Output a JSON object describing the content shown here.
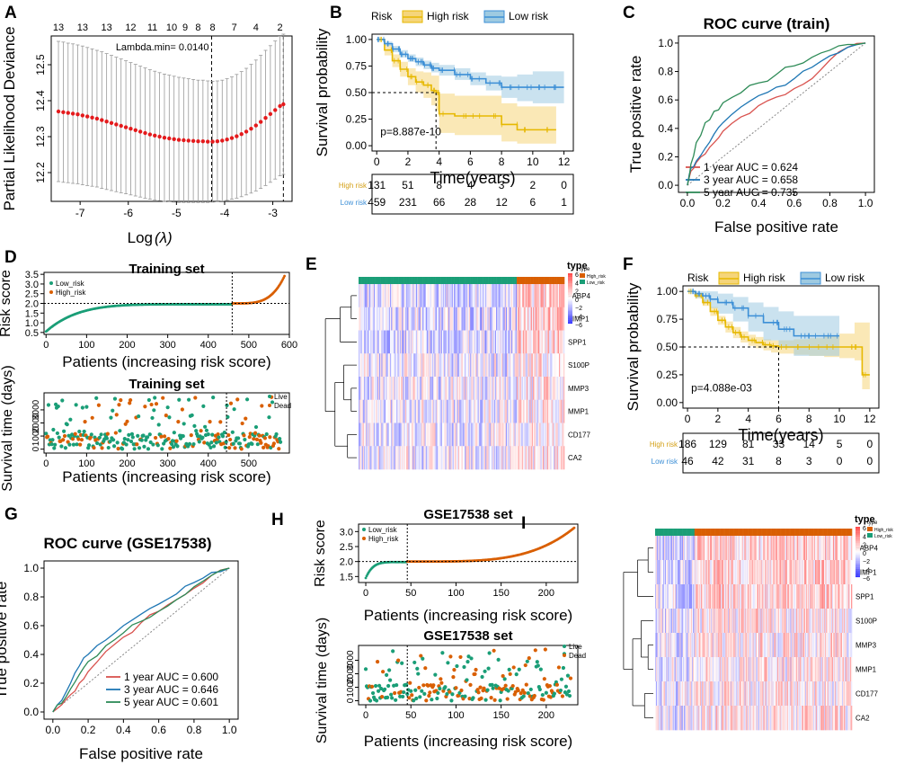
{
  "panel_labels": {
    "A": "A",
    "B": "B",
    "C": "C",
    "D": "D",
    "E": "E",
    "F": "F",
    "G": "G",
    "H": "H",
    "I": "I"
  },
  "chart_data": {
    "A": {
      "type": "scatter",
      "title": "",
      "xlabel": "Log",
      "xlabel_symbol": "(λ)",
      "ylabel": "Partial Likelihood Deviance",
      "xlim": [
        -7.6,
        -2.6
      ],
      "ylim": [
        12.12,
        12.58
      ],
      "xticks": [
        "-7",
        "-6",
        "-5",
        "-4",
        "-3"
      ],
      "xtick_vals": [
        -7,
        -6,
        -5,
        -4,
        -3
      ],
      "yticks": [
        "12.2",
        "12.3",
        "12.4",
        "12.5"
      ],
      "ytick_vals": [
        12.2,
        12.3,
        12.4,
        12.5
      ],
      "top_ticks": [
        "13",
        "13",
        "13",
        "12",
        "11",
        "10",
        "9",
        "8",
        "8",
        "7",
        "4",
        "2"
      ],
      "top_tick_vals": [
        -7.45,
        -6.95,
        -6.45,
        -5.95,
        -5.5,
        -5.1,
        -4.82,
        -4.55,
        -4.25,
        -3.8,
        -3.35,
        -2.85
      ],
      "annotation": "Lambda.min= 0.0140",
      "vlines": [
        -4.27,
        -2.78
      ],
      "x": [
        -7.45,
        -7.35,
        -7.25,
        -7.15,
        -7.05,
        -6.95,
        -6.85,
        -6.75,
        -6.65,
        -6.55,
        -6.45,
        -6.35,
        -6.25,
        -6.15,
        -6.05,
        -5.95,
        -5.85,
        -5.75,
        -5.65,
        -5.55,
        -5.45,
        -5.35,
        -5.25,
        -5.15,
        -5.05,
        -4.95,
        -4.85,
        -4.75,
        -4.65,
        -4.55,
        -4.45,
        -4.35,
        -4.25,
        -4.15,
        -4.05,
        -3.95,
        -3.85,
        -3.75,
        -3.65,
        -3.55,
        -3.45,
        -3.35,
        -3.25,
        -3.15,
        -3.05,
        -2.95,
        -2.85,
        -2.78
      ],
      "y": [
        12.37,
        12.368,
        12.366,
        12.364,
        12.362,
        12.359,
        12.356,
        12.353,
        12.35,
        12.346,
        12.342,
        12.338,
        12.334,
        12.33,
        12.326,
        12.322,
        12.318,
        12.314,
        12.31,
        12.306,
        12.303,
        12.3,
        12.297,
        12.295,
        12.293,
        12.291,
        12.29,
        12.289,
        12.288,
        12.287,
        12.287,
        12.286,
        12.286,
        12.287,
        12.289,
        12.292,
        12.296,
        12.301,
        12.307,
        12.314,
        12.322,
        12.331,
        12.341,
        12.352,
        12.363,
        12.374,
        12.385,
        12.39
      ],
      "err": [
        0.195,
        0.195,
        0.194,
        0.194,
        0.193,
        0.193,
        0.192,
        0.191,
        0.19,
        0.19,
        0.189,
        0.188,
        0.187,
        0.186,
        0.185,
        0.184,
        0.183,
        0.182,
        0.181,
        0.18,
        0.179,
        0.178,
        0.177,
        0.176,
        0.175,
        0.174,
        0.173,
        0.172,
        0.171,
        0.17,
        0.17,
        0.169,
        0.168,
        0.168,
        0.168,
        0.169,
        0.17,
        0.172,
        0.174,
        0.176,
        0.179,
        0.182,
        0.185,
        0.188,
        0.19,
        0.192,
        0.194,
        0.195
      ]
    },
    "B": {
      "type": "line",
      "legend_title": "Risk",
      "series_names": [
        "High risk",
        "Low risk"
      ],
      "xlabel": "Time(years)",
      "ylabel": "Survival probability",
      "xlim": [
        -0.3,
        12.6
      ],
      "ylim": [
        -0.05,
        1.05
      ],
      "xticks": [
        "0",
        "2",
        "4",
        "6",
        "8",
        "10",
        "12"
      ],
      "xtick_vals": [
        0,
        2,
        4,
        6,
        8,
        10,
        12
      ],
      "yticks": [
        "0.00",
        "0.25",
        "0.50",
        "0.75",
        "1.00"
      ],
      "ytick_vals": [
        0,
        0.25,
        0.5,
        0.75,
        1
      ],
      "pvalue": "p=8.887e-10",
      "median_time": 3.8,
      "high_x": [
        0,
        0.5,
        1,
        1.5,
        2,
        2.5,
        3,
        3.5,
        3.8,
        4,
        5,
        6,
        7,
        8,
        9,
        10,
        11.5
      ],
      "high_y": [
        1,
        0.9,
        0.8,
        0.72,
        0.65,
        0.6,
        0.57,
        0.52,
        0.5,
        0.3,
        0.28,
        0.28,
        0.28,
        0.2,
        0.15,
        0.15,
        0.15
      ],
      "high_lo": [
        1,
        0.85,
        0.74,
        0.65,
        0.57,
        0.5,
        0.45,
        0.38,
        0.33,
        0.12,
        0.1,
        0.1,
        0.1,
        0.04,
        0.02,
        0.02,
        0.02
      ],
      "high_hi": [
        1,
        0.95,
        0.86,
        0.79,
        0.73,
        0.7,
        0.69,
        0.66,
        0.66,
        0.49,
        0.47,
        0.47,
        0.47,
        0.4,
        0.37,
        0.37,
        0.37
      ],
      "low_x": [
        0,
        0.5,
        1,
        1.5,
        2,
        2.5,
        3,
        3.5,
        4,
        5,
        6,
        7,
        8,
        9,
        10,
        11,
        12
      ],
      "low_y": [
        1,
        0.96,
        0.91,
        0.86,
        0.82,
        0.79,
        0.76,
        0.73,
        0.71,
        0.67,
        0.63,
        0.59,
        0.55,
        0.55,
        0.55,
        0.55,
        0.55
      ],
      "low_lo": [
        1,
        0.94,
        0.88,
        0.83,
        0.79,
        0.75,
        0.72,
        0.69,
        0.66,
        0.62,
        0.57,
        0.52,
        0.45,
        0.42,
        0.4,
        0.4,
        0.4
      ],
      "low_hi": [
        1,
        0.98,
        0.94,
        0.9,
        0.86,
        0.83,
        0.8,
        0.78,
        0.76,
        0.73,
        0.69,
        0.66,
        0.65,
        0.67,
        0.7,
        0.7,
        0.7
      ],
      "table": {
        "labels": [
          "High risk",
          "Low risk"
        ],
        "rows": [
          [
            "131",
            "51",
            "8",
            "4",
            "3",
            "2",
            "0"
          ],
          [
            "459",
            "231",
            "66",
            "28",
            "12",
            "6",
            "1"
          ]
        ]
      }
    },
    "C": {
      "type": "line",
      "title": "ROC curve (train)",
      "xlabel": "False positive rate",
      "ylabel": "True positive rate",
      "xlim": [
        -0.05,
        1.05
      ],
      "ylim": [
        -0.05,
        1.05
      ],
      "xticks": [
        "0.0",
        "0.2",
        "0.4",
        "0.6",
        "0.8",
        "1.0"
      ],
      "ticks": [
        0,
        0.2,
        0.4,
        0.6,
        0.8,
        1
      ],
      "yticks": [
        "0.0",
        "0.2",
        "0.4",
        "0.6",
        "0.8",
        "1.0"
      ],
      "series": [
        {
          "name": "1 year AUC =  0.624",
          "color": "#d9534f",
          "x": [
            0,
            0.02,
            0.05,
            0.1,
            0.15,
            0.2,
            0.3,
            0.4,
            0.5,
            0.6,
            0.7,
            0.8,
            0.9,
            1
          ],
          "y": [
            0,
            0.1,
            0.16,
            0.22,
            0.3,
            0.38,
            0.48,
            0.56,
            0.62,
            0.68,
            0.75,
            0.88,
            0.97,
            1
          ]
        },
        {
          "name": "3 year AUC =  0.658",
          "color": "#1f77b4",
          "x": [
            0,
            0.02,
            0.05,
            0.1,
            0.15,
            0.2,
            0.3,
            0.4,
            0.5,
            0.6,
            0.7,
            0.8,
            0.9,
            1
          ],
          "y": [
            0,
            0.12,
            0.17,
            0.26,
            0.36,
            0.44,
            0.55,
            0.63,
            0.69,
            0.75,
            0.83,
            0.91,
            0.97,
            1
          ]
        },
        {
          "name": "5 year AUC =  0.735",
          "color": "#2e8b57",
          "x": [
            0,
            0.02,
            0.05,
            0.1,
            0.15,
            0.2,
            0.3,
            0.4,
            0.5,
            0.6,
            0.7,
            0.8,
            0.9,
            1
          ],
          "y": [
            0,
            0.15,
            0.3,
            0.44,
            0.52,
            0.58,
            0.65,
            0.72,
            0.78,
            0.84,
            0.9,
            0.95,
            0.99,
            1
          ]
        }
      ]
    },
    "D_top": {
      "type": "scatter",
      "title": "Training set",
      "xlabel": "Patients (increasing risk score)",
      "ylabel": "Risk score",
      "xlim": [
        -5,
        600
      ],
      "ylim": [
        0.4,
        3.6
      ],
      "xticks": [
        "0",
        "100",
        "200",
        "300",
        "400",
        "500",
        "600"
      ],
      "xtick_vals": [
        0,
        100,
        200,
        300,
        400,
        500,
        600
      ],
      "yticks": [
        "0.5",
        "1.0",
        "1.5",
        "2.0",
        "2.5",
        "3.0",
        "3.5"
      ],
      "ytick_vals": [
        0.5,
        1,
        1.5,
        2,
        2.5,
        3,
        3.5
      ],
      "legend": [
        "Low_risk",
        "High_risk"
      ],
      "cutoff_x": 459,
      "cutoff_y": 2.0,
      "n": 590
    },
    "D_bottom": {
      "type": "scatter",
      "title": "Training set",
      "xlabel": "Patients (increasing risk score)",
      "ylabel": "Survival time (days)",
      "xlim": [
        -5,
        600
      ],
      "ylim": [
        -300,
        4300
      ],
      "xticks": [
        "0",
        "100",
        "200",
        "300",
        "400",
        "500"
      ],
      "xtick_vals": [
        0,
        100,
        200,
        300,
        400,
        500
      ],
      "yticks": [
        "0",
        "1000",
        "2000",
        "3000"
      ],
      "ytick_vals": [
        0,
        1000,
        2000,
        3000
      ],
      "legend": [
        "Live",
        "Dead"
      ],
      "cutoff_x": 445,
      "n": 580
    },
    "E": {
      "type": "heatmap",
      "genes": [
        "FABP4",
        "TIMP1",
        "SPP1",
        "S100P",
        "MMP3",
        "MMP1",
        "CD177",
        "CA2"
      ],
      "legend_ticks": [
        "6",
        "4",
        "2",
        "0",
        "−2",
        "−4",
        "−6"
      ],
      "type_label": "type",
      "type_levels": [
        "High_risk",
        "Low_risk"
      ],
      "low_fraction": 0.77,
      "cols": 190
    },
    "F": {
      "type": "line",
      "legend_title": "Risk",
      "series_names": [
        "High risk",
        "Low risk"
      ],
      "xlabel": "Time(years)",
      "ylabel": "Survival probability",
      "xlim": [
        -0.3,
        12.6
      ],
      "ylim": [
        -0.05,
        1.05
      ],
      "xticks": [
        "0",
        "2",
        "4",
        "6",
        "8",
        "10",
        "12"
      ],
      "xtick_vals": [
        0,
        2,
        4,
        6,
        8,
        10,
        12
      ],
      "yticks": [
        "0.00",
        "0.25",
        "0.50",
        "0.75",
        "1.00"
      ],
      "ytick_vals": [
        0,
        0.25,
        0.5,
        0.75,
        1
      ],
      "pvalue": "p=4.088e-03",
      "median_time": 6.0,
      "high_x": [
        0,
        0.5,
        1,
        1.5,
        2,
        2.5,
        3,
        3.5,
        4,
        4.5,
        5,
        5.5,
        6,
        7,
        8,
        9,
        10,
        11,
        11.5,
        12
      ],
      "high_y": [
        1,
        0.96,
        0.9,
        0.82,
        0.74,
        0.68,
        0.63,
        0.59,
        0.56,
        0.54,
        0.52,
        0.51,
        0.5,
        0.5,
        0.5,
        0.5,
        0.5,
        0.5,
        0.25,
        0.25
      ],
      "high_lo": [
        1,
        0.94,
        0.87,
        0.78,
        0.7,
        0.63,
        0.58,
        0.54,
        0.51,
        0.49,
        0.47,
        0.45,
        0.44,
        0.43,
        0.42,
        0.41,
        0.4,
        0.38,
        0.12,
        0.12
      ],
      "high_hi": [
        1,
        0.98,
        0.93,
        0.86,
        0.78,
        0.73,
        0.68,
        0.64,
        0.61,
        0.59,
        0.57,
        0.56,
        0.56,
        0.57,
        0.58,
        0.6,
        0.62,
        0.72,
        0.72,
        0.72
      ],
      "low_x": [
        0,
        0.5,
        1,
        1.5,
        2,
        3,
        4,
        5,
        6,
        7,
        8,
        9,
        10
      ],
      "low_y": [
        1,
        0.98,
        0.96,
        0.93,
        0.9,
        0.85,
        0.78,
        0.72,
        0.66,
        0.6,
        0.6,
        0.6,
        0.6
      ],
      "low_lo": [
        1,
        0.94,
        0.9,
        0.85,
        0.8,
        0.73,
        0.64,
        0.56,
        0.49,
        0.42,
        0.42,
        0.42,
        0.42
      ],
      "low_hi": [
        1,
        1,
        1,
        1,
        0.98,
        0.95,
        0.9,
        0.86,
        0.82,
        0.78,
        0.78,
        0.78,
        0.78
      ],
      "table": {
        "labels": [
          "High risk",
          "Low risk"
        ],
        "rows": [
          [
            "186",
            "129",
            "81",
            "33",
            "14",
            "5",
            "0"
          ],
          [
            "46",
            "42",
            "31",
            "8",
            "3",
            "0",
            "0"
          ]
        ]
      }
    },
    "G": {
      "type": "line",
      "title": "ROC curve (GSE17538)",
      "xlabel": "False positive rate",
      "ylabel": "True positive rate",
      "xlim": [
        -0.05,
        1.05
      ],
      "ylim": [
        -0.05,
        1.05
      ],
      "xticks": [
        "0.0",
        "0.2",
        "0.4",
        "0.6",
        "0.8",
        "1.0"
      ],
      "ticks": [
        0,
        0.2,
        0.4,
        0.6,
        0.8,
        1
      ],
      "yticks": [
        "0.0",
        "0.2",
        "0.4",
        "0.6",
        "0.8",
        "1.0"
      ],
      "series": [
        {
          "name": "1 year AUC =  0.600",
          "color": "#d9534f",
          "x": [
            0,
            0.05,
            0.1,
            0.15,
            0.2,
            0.3,
            0.4,
            0.5,
            0.6,
            0.7,
            0.8,
            0.9,
            1
          ],
          "y": [
            0,
            0.05,
            0.12,
            0.2,
            0.28,
            0.42,
            0.52,
            0.62,
            0.7,
            0.78,
            0.86,
            0.95,
            1
          ]
        },
        {
          "name": "3 year AUC =  0.646",
          "color": "#1f77b4",
          "x": [
            0,
            0.05,
            0.1,
            0.15,
            0.2,
            0.3,
            0.4,
            0.5,
            0.6,
            0.7,
            0.8,
            0.9,
            1
          ],
          "y": [
            0,
            0.08,
            0.2,
            0.32,
            0.4,
            0.5,
            0.6,
            0.68,
            0.75,
            0.82,
            0.9,
            0.97,
            1
          ]
        },
        {
          "name": "5 year AUC =  0.601",
          "color": "#2e8b57",
          "x": [
            0,
            0.05,
            0.1,
            0.15,
            0.2,
            0.3,
            0.4,
            0.5,
            0.6,
            0.7,
            0.8,
            0.9,
            1
          ],
          "y": [
            0,
            0.06,
            0.16,
            0.26,
            0.35,
            0.46,
            0.55,
            0.63,
            0.7,
            0.78,
            0.87,
            0.95,
            1
          ]
        }
      ]
    },
    "H_top": {
      "type": "scatter",
      "title": "GSE17538 set",
      "xlabel": "Patients (increasing risk score)",
      "ylabel": "Risk score",
      "xlim": [
        -8,
        235
      ],
      "ylim": [
        1.3,
        3.25
      ],
      "xticks": [
        "0",
        "50",
        "100",
        "150",
        "200"
      ],
      "xtick_vals": [
        0,
        50,
        100,
        150,
        200
      ],
      "yticks": [
        "1.5",
        "2.0",
        "2.5",
        "3.0"
      ],
      "ytick_vals": [
        1.5,
        2,
        2.5,
        3
      ],
      "legend": [
        "Low_risk",
        "High_risk"
      ],
      "cutoff_x": 46,
      "cutoff_y": 2.0,
      "n": 232
    },
    "H_bottom": {
      "type": "scatter",
      "title": "GSE17538 set",
      "xlabel": "Patients (increasing risk score)",
      "ylabel": "Survival time (days)",
      "xlim": [
        -8,
        235
      ],
      "ylim": [
        -300,
        4100
      ],
      "xticks": [
        "0",
        "50",
        "100",
        "150",
        "200"
      ],
      "xtick_vals": [
        0,
        50,
        100,
        150,
        200
      ],
      "yticks": [
        "0",
        "1000",
        "2000",
        "3000"
      ],
      "ytick_vals": [
        0,
        1000,
        2000,
        3000
      ],
      "legend": [
        "Live",
        "Dead"
      ],
      "cutoff_x": 46,
      "n": 228
    },
    "I": {
      "type": "heatmap",
      "genes": [
        "FABP4",
        "TIMP1",
        "SPP1",
        "S100P",
        "MMP3",
        "MMP1",
        "CD177",
        "CA2"
      ],
      "legend_ticks": [
        "6",
        "4",
        "2",
        "0",
        "−2",
        "−4",
        "−6"
      ],
      "type_label": "type",
      "type_levels": [
        "High_risk",
        "Low_risk"
      ],
      "low_fraction": 0.2,
      "cols": 240
    }
  }
}
